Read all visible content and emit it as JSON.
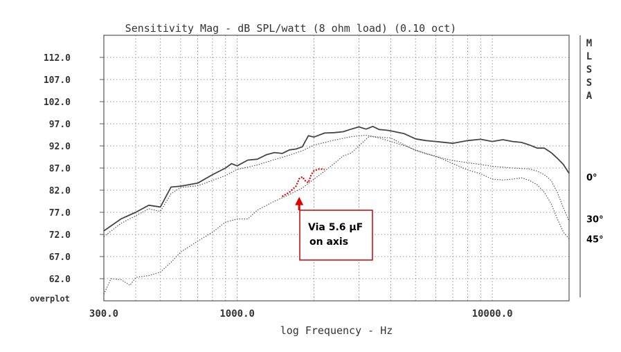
{
  "chart_data": {
    "type": "line",
    "title": "Sensitivity Mag - dB SPL/watt (8 ohm load) (0.10 oct)",
    "xlabel": "log Frequency - Hz",
    "ylabel": "",
    "x_scale": "log",
    "xlim": [
      300,
      20000
    ],
    "ylim": [
      57,
      117
    ],
    "grid": true,
    "ytick_labels": [
      "112.0",
      "107.0",
      "102.0",
      "97.0",
      "92.0",
      "87.0",
      "82.0",
      "77.0",
      "72.0",
      "67.0",
      "62.0"
    ],
    "ytick_values": [
      112,
      107,
      102,
      97,
      92,
      87,
      82,
      77,
      72,
      67,
      62
    ],
    "bottom_label": "overplot",
    "xtick_labels": [
      "300.0",
      "1000.0",
      "10000.0"
    ],
    "xtick_values": [
      300,
      1000,
      10000
    ],
    "side_letters": [
      "M",
      "L",
      "S",
      "S",
      "A"
    ],
    "series": [
      {
        "name": "0°",
        "style": "solid",
        "color": "#444444",
        "x": [
          300,
          350,
          400,
          450,
          500,
          550,
          600,
          700,
          800,
          900,
          950,
          1000,
          1100,
          1200,
          1300,
          1400,
          1500,
          1600,
          1700,
          1800,
          1900,
          2000,
          2200,
          2400,
          2600,
          2800,
          3000,
          3200,
          3400,
          3600,
          3800,
          4000,
          4500,
          5000,
          5500,
          6000,
          7000,
          8000,
          9000,
          10000,
          11000,
          12000,
          13000,
          14000,
          15000,
          16000,
          17000,
          18000,
          19000,
          20000
        ],
        "y": [
          72.8,
          75.5,
          77,
          78.6,
          78.2,
          82.7,
          82.9,
          83.6,
          85.5,
          87,
          88,
          87.5,
          88.8,
          89,
          90,
          90.5,
          90.3,
          91.1,
          91.3,
          91.8,
          94.3,
          94,
          94.9,
          95,
          95.2,
          95.8,
          96.3,
          95.8,
          96.4,
          95.7,
          95.6,
          95.4,
          94.8,
          93.6,
          93.2,
          93,
          92.6,
          93.2,
          93.5,
          93,
          93.4,
          93,
          92.8,
          92.2,
          91.5,
          91.5,
          90.5,
          89.2,
          87.8,
          85.8
        ]
      },
      {
        "name": "30°",
        "style": "dotted",
        "color": "#555555",
        "x": [
          300,
          350,
          400,
          450,
          500,
          550,
          600,
          700,
          800,
          900,
          1000,
          1100,
          1200,
          1400,
          1600,
          1800,
          2000,
          2400,
          2800,
          3200,
          3600,
          4000,
          4500,
          5000,
          6000,
          7000,
          8000,
          9000,
          10000,
          12000,
          14000,
          15000,
          16000,
          17000,
          18000,
          19000,
          20000
        ],
        "y": [
          71.5,
          74.5,
          76.2,
          77.8,
          77.2,
          81.2,
          82.6,
          83,
          84.2,
          85.3,
          86.7,
          87.2,
          87.7,
          88.9,
          89.9,
          90.9,
          92.2,
          93.3,
          94.1,
          94.4,
          93.8,
          93,
          92.1,
          91.1,
          89.6,
          88.7,
          88.2,
          87.8,
          87.4,
          87,
          86.8,
          86.3,
          85.5,
          84.2,
          81.5,
          78,
          75
        ]
      },
      {
        "name": "45°",
        "style": "dotted",
        "color": "#555555",
        "x": [
          300,
          320,
          350,
          380,
          400,
          450,
          500,
          550,
          600,
          700,
          800,
          900,
          1000,
          1100,
          1200,
          1400,
          1600,
          1800,
          2000,
          2200,
          2400,
          2600,
          2800,
          3000,
          3300,
          3600,
          4000,
          4500,
          5000,
          5500,
          6000,
          7000,
          8000,
          9000,
          10000,
          11000,
          12000,
          13000,
          14000,
          15000,
          16000,
          17000,
          18000,
          19000,
          20000
        ],
        "y": [
          58.5,
          62,
          61.8,
          60.5,
          62.3,
          62.7,
          63.5,
          65.7,
          68,
          70.5,
          72.5,
          74.8,
          75.5,
          75.5,
          77.5,
          79.5,
          81,
          82.5,
          84.5,
          86.3,
          88,
          89.7,
          90.4,
          92,
          94.2,
          94,
          93.8,
          92.3,
          91,
          90.2,
          89.7,
          88,
          86.6,
          85.7,
          84.5,
          84.3,
          84.5,
          84.8,
          84.2,
          83.2,
          81.5,
          79,
          75.5,
          72.5,
          71
        ]
      },
      {
        "name": "Via 5.6 µF on axis",
        "style": "dotted",
        "color": "#dd0000",
        "x": [
          1500,
          1600,
          1700,
          1750,
          1800,
          1850,
          1900,
          1950,
          2000,
          2100,
          2200
        ],
        "y": [
          80.6,
          81.5,
          82.9,
          84.6,
          85,
          84.1,
          83.7,
          85.5,
          86.4,
          86.8,
          86.7
        ]
      }
    ],
    "annotation": {
      "text_line1": "Via 5.6 µF",
      "text_line2": "on axis",
      "arrow_x": 1750,
      "arrow_y": 80.5
    },
    "angle_labels": [
      {
        "text": "0°",
        "y": 85
      },
      {
        "text": "30°",
        "y": 75.5
      },
      {
        "text": "45°",
        "y": 71
      }
    ]
  }
}
